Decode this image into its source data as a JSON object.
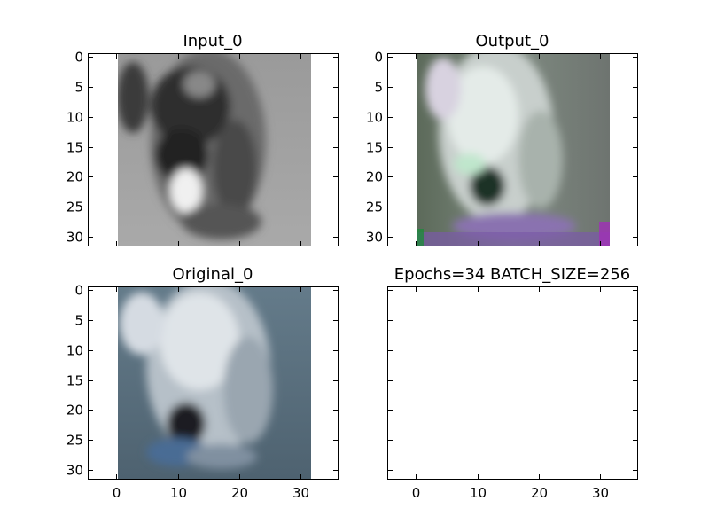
{
  "figure": {
    "suptitle": ""
  },
  "chart_data": [
    {
      "type": "heatmap",
      "title": "Input_0",
      "image": {
        "extent": [
          0,
          32,
          0,
          32
        ],
        "colormap": "gray",
        "description": "grayscale 32x32 image of a dog"
      },
      "xlim": [
        -4.5,
        36
      ],
      "ylim": [
        31.5,
        -0.5
      ],
      "xticks": [
        0,
        10,
        20,
        30
      ],
      "yticks": [
        0,
        5,
        10,
        15,
        20,
        25,
        30
      ],
      "show_xticklabels": false,
      "show_yticklabels": true
    },
    {
      "type": "heatmap",
      "title": "Output_0",
      "image": {
        "extent": [
          0,
          32,
          0,
          32
        ],
        "colormap": "rgb",
        "description": "reconstructed color 32x32 image of a dog"
      },
      "xlim": [
        -4.5,
        36
      ],
      "ylim": [
        31.5,
        -0.5
      ],
      "xticks": [
        0,
        10,
        20,
        30
      ],
      "yticks": [
        0,
        5,
        10,
        15,
        20,
        25,
        30
      ],
      "show_xticklabels": false,
      "show_yticklabels": true
    },
    {
      "type": "heatmap",
      "title": "Original_0",
      "image": {
        "extent": [
          0,
          32,
          0,
          32
        ],
        "colormap": "rgb",
        "description": "original color 32x32 image of a dog"
      },
      "xlim": [
        -4.5,
        36
      ],
      "ylim": [
        31.5,
        -0.5
      ],
      "xticks": [
        0,
        10,
        20,
        30
      ],
      "yticks": [
        0,
        5,
        10,
        15,
        20,
        25,
        30
      ],
      "show_xticklabels": true,
      "show_yticklabels": true
    },
    {
      "type": "heatmap",
      "title": "Epochs=34 BATCH_SIZE=256",
      "image": null,
      "xlim": [
        -4.5,
        36
      ],
      "ylim": [
        31.5,
        -0.5
      ],
      "xticks": [
        0,
        10,
        20,
        30
      ],
      "yticks": [
        0,
        5,
        10,
        15,
        20,
        25,
        30
      ],
      "show_xticklabels": true,
      "show_yticklabels": false
    }
  ]
}
